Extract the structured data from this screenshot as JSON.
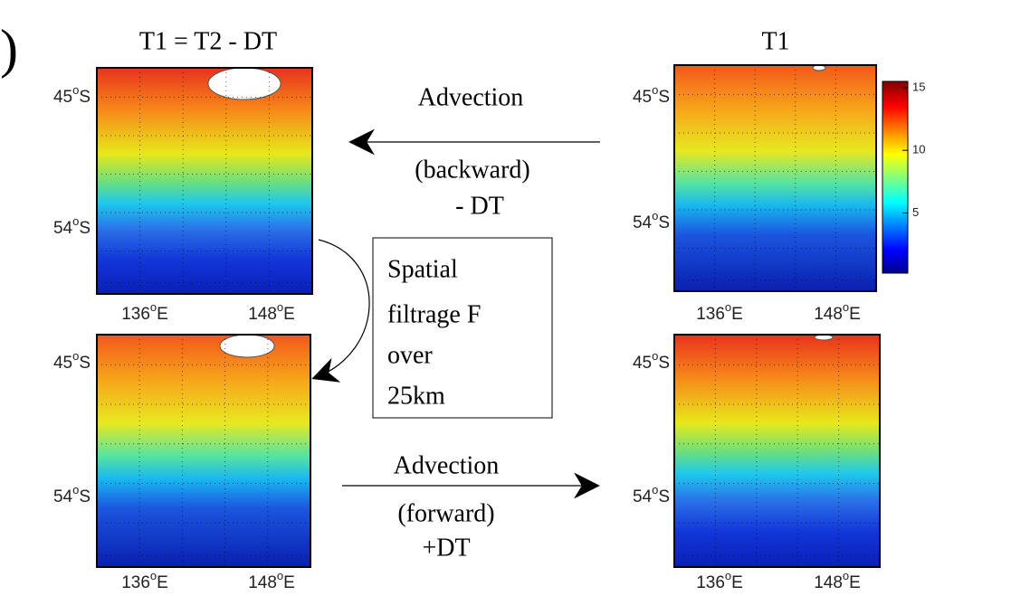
{
  "panel_label": ")",
  "titles": [
    "T1 = T2 - DT",
    "T1"
  ],
  "panels": [
    {
      "lat_labels": [
        {
          "number": "45",
          "degree": "o",
          "hemisphere": "S"
        },
        {
          "number": "54",
          "degree": "o",
          "hemisphere": "S"
        }
      ],
      "lon_labels": [
        {
          "number": "136",
          "degree": "o",
          "hemisphere": "E"
        },
        {
          "number": "148",
          "degree": "o",
          "hemisphere": "E"
        }
      ]
    },
    {
      "lat_labels": [
        {
          "number": "45",
          "degree": "o",
          "hemisphere": "S"
        },
        {
          "number": "54",
          "degree": "o",
          "hemisphere": "S"
        }
      ],
      "lon_labels": [
        {
          "number": "136",
          "degree": "o",
          "hemisphere": "E"
        },
        {
          "number": "148",
          "degree": "o",
          "hemisphere": "E"
        }
      ]
    },
    {
      "lat_labels": [
        {
          "number": "45",
          "degree": "o",
          "hemisphere": "S"
        },
        {
          "number": "54",
          "degree": "o",
          "hemisphere": "S"
        }
      ],
      "lon_labels": [
        {
          "number": "136",
          "degree": "o",
          "hemisphere": "E"
        },
        {
          "number": "148",
          "degree": "o",
          "hemisphere": "E"
        }
      ]
    },
    {
      "lat_labels": [
        {
          "number": "45",
          "degree": "o",
          "hemisphere": "S"
        },
        {
          "number": "54",
          "degree": "o",
          "hemisphere": "S"
        }
      ],
      "lon_labels": [
        {
          "number": "136",
          "degree": "o",
          "hemisphere": "E"
        },
        {
          "number": "148",
          "degree": "o",
          "hemisphere": "E"
        }
      ]
    }
  ],
  "colorbar": {
    "lim": [
      0.2,
      15.5
    ],
    "ticks": [
      5,
      10,
      15
    ]
  },
  "top_arrow": {
    "label": "Advection",
    "direction": "(backward)",
    "step": "- DT"
  },
  "filter_box": {
    "lines": [
      "Spatial",
      "filtrage F",
      "over",
      "25km"
    ]
  },
  "bottom_arrow": {
    "label": "Advection",
    "direction": "(forward)",
    "step": "+DT"
  }
}
